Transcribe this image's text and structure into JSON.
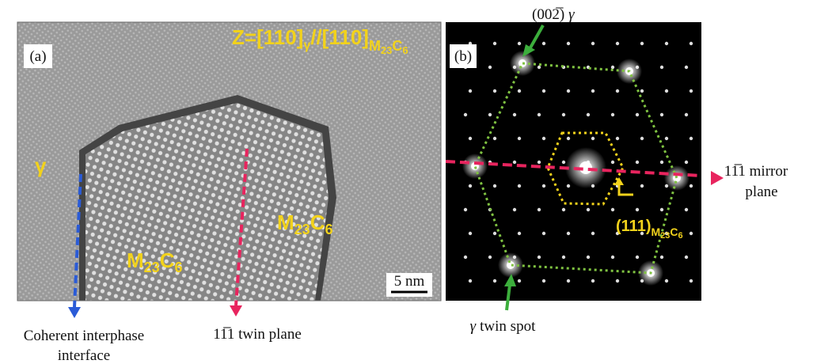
{
  "panel_a": {
    "label": "(a)",
    "zone_axis": [
      "Z=[110]",
      "γ",
      "//[110]",
      "M",
      "23",
      "C",
      "6"
    ],
    "gamma": "γ",
    "phase_left": [
      "M",
      "23",
      "C",
      "6"
    ],
    "phase_right": [
      "M",
      "23",
      "C",
      "6"
    ],
    "scale_bar": "5 nm",
    "interface_label": [
      "Coherent interphase",
      "interface"
    ],
    "twin_plane_label": "11̅1 twin plane"
  },
  "panel_b": {
    "label": "(b)",
    "gamma_spot": [
      "(002̅)",
      "γ"
    ],
    "mirror_label": [
      "11̅1 mirror",
      "plane"
    ],
    "carbide_spot": [
      "(111)",
      "M",
      "23",
      "C",
      "6"
    ],
    "twin_spot": [
      "γ",
      "twin spot"
    ]
  }
}
